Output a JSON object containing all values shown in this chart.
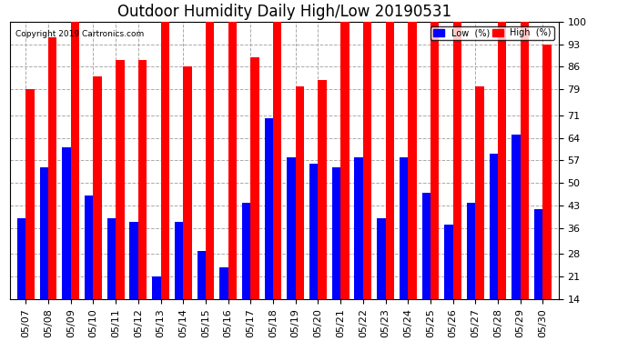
{
  "title": "Outdoor Humidity Daily High/Low 20190531",
  "copyright": "Copyright 2019 Cartronics.com",
  "dates": [
    "05/07",
    "05/08",
    "05/09",
    "05/10",
    "05/11",
    "05/12",
    "05/13",
    "05/14",
    "05/15",
    "05/16",
    "05/17",
    "05/18",
    "05/19",
    "05/20",
    "05/21",
    "05/22",
    "05/23",
    "05/24",
    "05/25",
    "05/26",
    "05/27",
    "05/28",
    "05/29",
    "05/30"
  ],
  "high": [
    79,
    95,
    100,
    83,
    88,
    88,
    100,
    86,
    100,
    100,
    89,
    100,
    80,
    82,
    100,
    100,
    100,
    100,
    100,
    100,
    80,
    100,
    100,
    93
  ],
  "low": [
    39,
    55,
    61,
    46,
    39,
    38,
    21,
    38,
    29,
    24,
    44,
    70,
    58,
    56,
    55,
    58,
    39,
    58,
    47,
    37,
    44,
    59,
    65,
    42
  ],
  "high_color": "#ff0000",
  "low_color": "#0000ff",
  "bg_color": "#ffffff",
  "grid_color": "#aaaaaa",
  "yticks": [
    14,
    21,
    28,
    36,
    43,
    50,
    57,
    64,
    71,
    79,
    86,
    93,
    100
  ],
  "ymin": 14,
  "ymax": 100,
  "bar_width": 0.38,
  "title_fontsize": 12,
  "tick_fontsize": 8,
  "legend_low_label": "Low  (%)",
  "legend_high_label": "High  (%)"
}
